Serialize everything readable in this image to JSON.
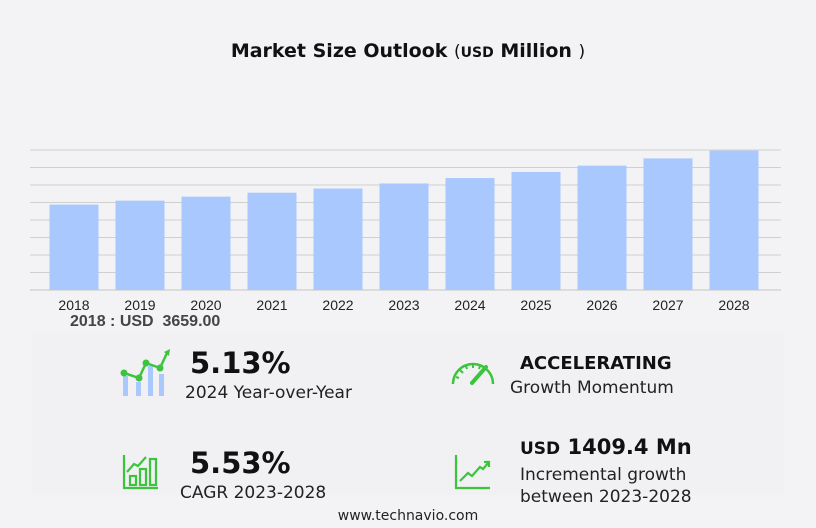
{
  "title": {
    "text": "Market Size Outlook",
    "open": "(",
    "unit": "USD",
    "unit_word": "Million",
    "close": ")"
  },
  "chart_data": {
    "type": "bar",
    "categories": [
      "2018",
      "2019",
      "2020",
      "2021",
      "2022",
      "2023",
      "2024",
      "2025",
      "2026",
      "2027",
      "2028"
    ],
    "values": [
      3659.0,
      3830,
      4000,
      4170,
      4350,
      4564,
      4798,
      5060,
      5330,
      5640,
      5973
    ],
    "ylim": [
      0,
      6000
    ],
    "grid": true,
    "bar_color": "#a8c8fe"
  },
  "base_label": "2018 : USD  3659.00",
  "stats": {
    "yoy": {
      "value": "5.13%",
      "label": "2024 Year-over-Year"
    },
    "momentum": {
      "value": "ACCELERATING",
      "label": "Growth Momentum"
    },
    "cagr": {
      "value": "5.53%",
      "label": "CAGR 2023-2028"
    },
    "incremental": {
      "unit": "USD",
      "value": "1409.4 Mn",
      "label1": "Incremental growth",
      "label2": "between 2023-2028"
    }
  },
  "accent_color": "#3cc43c",
  "footer": "www.technavio.com"
}
